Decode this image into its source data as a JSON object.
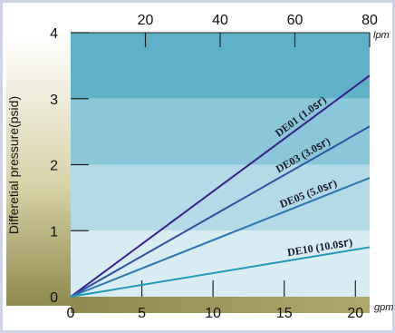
{
  "chart_data": {
    "type": "line",
    "title": "",
    "ylabel": "Differetial pressure(psid)",
    "xlabel_bottom_unit": "gpm",
    "xlabel_top_unit": "lpm",
    "x_bottom": {
      "range": [
        0,
        21
      ],
      "ticks": [
        0,
        5,
        10,
        15,
        20
      ],
      "tick_labels": [
        "0",
        "5",
        "10",
        "15",
        "20"
      ]
    },
    "x_top": {
      "range": [
        0,
        80
      ],
      "ticks": [
        20,
        40,
        60,
        80
      ],
      "tick_labels": [
        "20",
        "40",
        "60",
        "80"
      ]
    },
    "y": {
      "range": [
        0,
        4
      ],
      "ticks": [
        0,
        1,
        2,
        3,
        4
      ],
      "tick_labels": [
        "0",
        "1",
        "2",
        "3",
        "4"
      ]
    },
    "grid": false,
    "series": [
      {
        "name": "DE01 (1.0㏛)",
        "x": [
          0,
          21
        ],
        "y": [
          0,
          3.35
        ],
        "color": "#3a1f8c"
      },
      {
        "name": "DE03 (3.0㏛)",
        "x": [
          0,
          21
        ],
        "y": [
          0,
          2.58
        ],
        "color": "#2f4fa3"
      },
      {
        "name": "DE05 (5.0㏛)",
        "x": [
          0,
          21
        ],
        "y": [
          0,
          1.8
        ],
        "color": "#2a76b5"
      },
      {
        "name": "DE10 (10.0㏛)",
        "x": [
          0,
          21
        ],
        "y": [
          0,
          0.75
        ],
        "color": "#1f9ab3"
      }
    ]
  },
  "colors": {
    "band_4_3": "#5fb1c8",
    "band_3_2": "#8ac8d9",
    "band_2_1": "#b3dbe7",
    "band_1_0": "#d7edf3",
    "bottom_strip": "#a39a5e",
    "left_gradient_top": "#ffffff",
    "left_gradient_bottom": "#8f8a4d"
  }
}
